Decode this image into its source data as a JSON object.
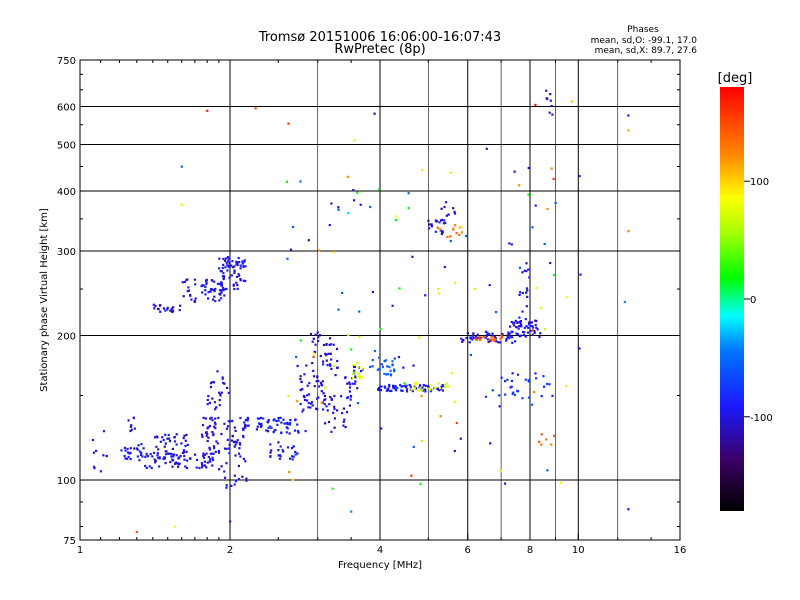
{
  "chart_data": {
    "type": "scatter",
    "title": "Tromsø 20151006 16:06:00-16:07:43",
    "subtitle": "RwPretec (8p)",
    "xlabel": "Frequency [MHz]",
    "ylabel": "Stationary phase Virtual Height [km]",
    "x_scale": "log",
    "y_scale": "log",
    "xlim": [
      1,
      16
    ],
    "ylim": [
      75,
      750
    ],
    "x_ticks": [
      1,
      2,
      4,
      6,
      8,
      10,
      16
    ],
    "y_ticks": [
      75,
      100,
      200,
      300,
      400,
      500,
      600,
      750
    ],
    "x_minor_gridlines": [
      3,
      5,
      7,
      9,
      12
    ],
    "grid": true,
    "phases": {
      "title": "Phases",
      "o_line": "mean, sd,O: -99.1, 17.0",
      "x_line": "mean, sd,X:  89.7, 27.6"
    },
    "colorbar": {
      "label": "[deg]",
      "ticks": [
        "100",
        "0",
        "-100"
      ],
      "tick_values": [
        100,
        0,
        -100
      ],
      "range": [
        -180,
        180
      ],
      "colormap": "rainbow"
    },
    "clusters": [
      {
        "x": [
          1.05,
          1.15
        ],
        "y": [
          103,
          128
        ],
        "n": 10,
        "phase": -110
      },
      {
        "x": [
          1.2,
          1.35
        ],
        "y": [
          110,
          120
        ],
        "n": 25,
        "phase": -105
      },
      {
        "x": [
          1.35,
          1.85
        ],
        "y": [
          106,
          114
        ],
        "n": 70,
        "phase": -105
      },
      {
        "x": [
          1.4,
          1.65
        ],
        "y": [
          112,
          125
        ],
        "n": 40,
        "phase": -110
      },
      {
        "x": [
          1.25,
          1.35
        ],
        "y": [
          125,
          135
        ],
        "n": 8,
        "phase": -110
      },
      {
        "x": [
          1.4,
          1.6
        ],
        "y": [
          223,
          232
        ],
        "n": 20,
        "phase": -110
      },
      {
        "x": [
          1.6,
          1.95
        ],
        "y": [
          235,
          262
        ],
        "n": 55,
        "phase": -105
      },
      {
        "x": [
          1.9,
          2.15
        ],
        "y": [
          248,
          292
        ],
        "n": 70,
        "phase": -105
      },
      {
        "x": [
          1.75,
          2.15
        ],
        "y": [
          112,
          135
        ],
        "n": 80,
        "phase": -108
      },
      {
        "x": [
          1.8,
          2.0
        ],
        "y": [
          140,
          170
        ],
        "n": 25,
        "phase": -112
      },
      {
        "x": [
          1.9,
          2.2
        ],
        "y": [
          96,
          112
        ],
        "n": 18,
        "phase": -105
      },
      {
        "x": [
          2.15,
          2.75
        ],
        "y": [
          125,
          135
        ],
        "n": 60,
        "phase": -100
      },
      {
        "x": [
          2.4,
          2.75
        ],
        "y": [
          110,
          120
        ],
        "n": 25,
        "phase": -100
      },
      {
        "x": [
          2.75,
          3.1
        ],
        "y": [
          138,
          165
        ],
        "n": 45,
        "phase": -110
      },
      {
        "x": [
          2.8,
          3.3
        ],
        "y": [
          165,
          205
        ],
        "n": 40,
        "phase": -112
      },
      {
        "x": [
          3.1,
          3.5
        ],
        "y": [
          125,
          150
        ],
        "n": 25,
        "phase": -115
      },
      {
        "x": [
          3.4,
          3.7
        ],
        "y": [
          145,
          175
        ],
        "n": 25,
        "phase": -108
      },
      {
        "x": [
          3.5,
          3.7
        ],
        "y": [
          160,
          180
        ],
        "n": 12,
        "phase": 75
      },
      {
        "x": [
          3.8,
          4.3
        ],
        "y": [
          165,
          180
        ],
        "n": 25,
        "phase": -60
      },
      {
        "x": [
          3.95,
          5.4
        ],
        "y": [
          153,
          158
        ],
        "n": 70,
        "phase": -100
      },
      {
        "x": [
          4.5,
          5.5
        ],
        "y": [
          153,
          160
        ],
        "n": 18,
        "phase": 80
      },
      {
        "x": [
          5.0,
          5.6
        ],
        "y": [
          325,
          350
        ],
        "n": 18,
        "phase": -110
      },
      {
        "x": [
          5.3,
          5.7
        ],
        "y": [
          355,
          380
        ],
        "n": 8,
        "phase": -110
      },
      {
        "x": [
          5.2,
          5.8
        ],
        "y": [
          318,
          340
        ],
        "n": 10,
        "phase": 130
      },
      {
        "x": [
          5.8,
          7.5
        ],
        "y": [
          193,
          204
        ],
        "n": 45,
        "phase": -105
      },
      {
        "x": [
          6.2,
          7.2
        ],
        "y": [
          195,
          200
        ],
        "n": 15,
        "phase": 150
      },
      {
        "x": [
          7.2,
          8.4
        ],
        "y": [
          198,
          215
        ],
        "n": 55,
        "phase": -110
      },
      {
        "x": [
          7.6,
          7.9
        ],
        "y": [
          215,
          290
        ],
        "n": 15,
        "phase": -108
      },
      {
        "x": [
          8.6,
          8.9
        ],
        "y": [
          555,
          650
        ],
        "n": 8,
        "phase": -110
      },
      {
        "x": [
          6.5,
          9.2
        ],
        "y": [
          148,
          170
        ],
        "n": 30,
        "phase": -90
      },
      {
        "x": [
          2.6,
          9.5
        ],
        "y": [
          95,
          450
        ],
        "n": 120,
        "phase": "mixed"
      },
      {
        "x": [
          8.3,
          9.0
        ],
        "y": [
          118,
          125
        ],
        "n": 6,
        "phase": 140
      }
    ],
    "isolated_points": [
      {
        "x": 1.6,
        "y": 450,
        "phase": -60
      },
      {
        "x": 1.6,
        "y": 375,
        "phase": 100
      },
      {
        "x": 1.8,
        "y": 588,
        "phase": 170
      },
      {
        "x": 2.25,
        "y": 595,
        "phase": 150
      },
      {
        "x": 2.62,
        "y": 553,
        "phase": 160
      },
      {
        "x": 3.9,
        "y": 580,
        "phase": -120
      },
      {
        "x": 3.55,
        "y": 510,
        "phase": 80
      },
      {
        "x": 3.45,
        "y": 360,
        "phase": -20
      },
      {
        "x": 2.65,
        "y": 302,
        "phase": -110
      },
      {
        "x": 6.55,
        "y": 490,
        "phase": -110
      },
      {
        "x": 7.95,
        "y": 447,
        "phase": -120
      },
      {
        "x": 8.2,
        "y": 605,
        "phase": 170
      },
      {
        "x": 9.7,
        "y": 615,
        "phase": 110
      },
      {
        "x": 10.05,
        "y": 430,
        "phase": -110
      },
      {
        "x": 12.6,
        "y": 575,
        "phase": -110
      },
      {
        "x": 12.6,
        "y": 535,
        "phase": 120
      },
      {
        "x": 12.6,
        "y": 330,
        "phase": 130
      },
      {
        "x": 12.4,
        "y": 235,
        "phase": -40
      },
      {
        "x": 10.1,
        "y": 268,
        "phase": -110
      },
      {
        "x": 10.05,
        "y": 188,
        "phase": -100
      },
      {
        "x": 12.6,
        "y": 87,
        "phase": -110
      },
      {
        "x": 1.3,
        "y": 78,
        "phase": 150
      },
      {
        "x": 2.0,
        "y": 82,
        "phase": -100
      },
      {
        "x": 3.5,
        "y": 86,
        "phase": -40
      },
      {
        "x": 1.55,
        "y": 80,
        "phase": 100
      }
    ]
  }
}
